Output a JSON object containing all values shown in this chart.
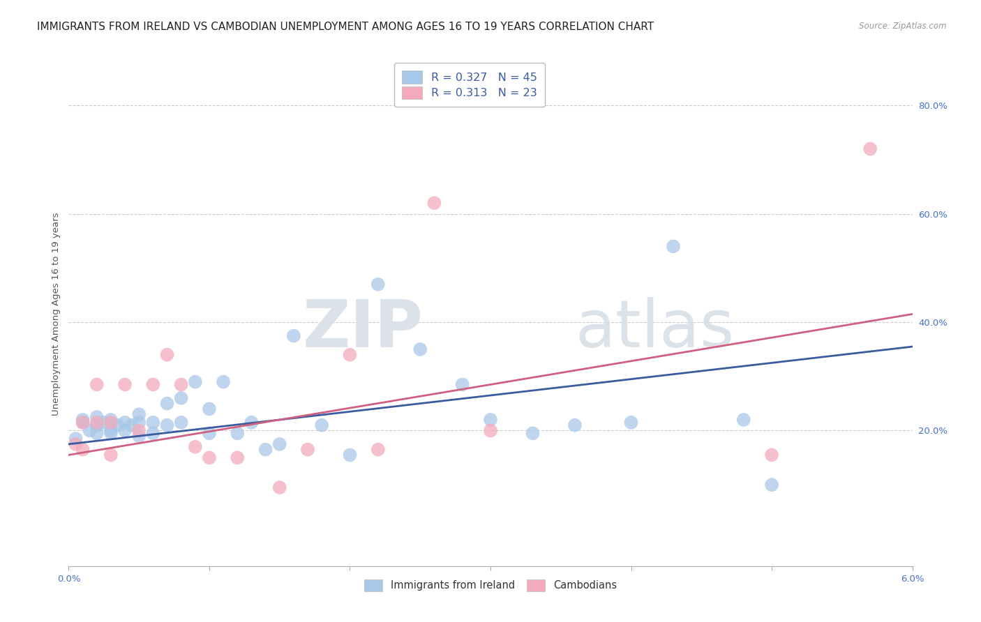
{
  "title": "IMMIGRANTS FROM IRELAND VS CAMBODIAN UNEMPLOYMENT AMONG AGES 16 TO 19 YEARS CORRELATION CHART",
  "source": "Source: ZipAtlas.com",
  "ylabel": "Unemployment Among Ages 16 to 19 years",
  "ylabel_right_ticks": [
    "80.0%",
    "60.0%",
    "40.0%",
    "20.0%"
  ],
  "ylabel_right_vals": [
    0.8,
    0.6,
    0.4,
    0.2
  ],
  "xmin": 0.0,
  "xmax": 0.06,
  "ymin": -0.05,
  "ymax": 0.88,
  "blue_color": "#A8C8E8",
  "pink_color": "#F4AABB",
  "blue_line_color": "#3A5BA0",
  "pink_line_color": "#D06080",
  "legend_r1": "0.327",
  "legend_n1": "45",
  "legend_r2": "0.313",
  "legend_n2": "23",
  "legend_label1": "Immigrants from Ireland",
  "legend_label2": "Cambodians",
  "blue_scatter_x": [
    0.0005,
    0.001,
    0.001,
    0.0015,
    0.002,
    0.002,
    0.002,
    0.0025,
    0.003,
    0.003,
    0.003,
    0.0035,
    0.004,
    0.004,
    0.0045,
    0.005,
    0.005,
    0.005,
    0.006,
    0.006,
    0.007,
    0.007,
    0.008,
    0.008,
    0.009,
    0.01,
    0.01,
    0.011,
    0.012,
    0.013,
    0.014,
    0.015,
    0.016,
    0.018,
    0.02,
    0.022,
    0.025,
    0.028,
    0.03,
    0.033,
    0.036,
    0.04,
    0.043,
    0.048,
    0.05
  ],
  "blue_scatter_y": [
    0.185,
    0.22,
    0.215,
    0.2,
    0.195,
    0.225,
    0.21,
    0.215,
    0.2,
    0.195,
    0.22,
    0.21,
    0.215,
    0.2,
    0.21,
    0.19,
    0.215,
    0.23,
    0.195,
    0.215,
    0.21,
    0.25,
    0.215,
    0.26,
    0.29,
    0.195,
    0.24,
    0.29,
    0.195,
    0.215,
    0.165,
    0.175,
    0.375,
    0.21,
    0.155,
    0.47,
    0.35,
    0.285,
    0.22,
    0.195,
    0.21,
    0.215,
    0.54,
    0.22,
    0.1
  ],
  "pink_scatter_x": [
    0.0005,
    0.001,
    0.001,
    0.002,
    0.002,
    0.003,
    0.003,
    0.004,
    0.005,
    0.006,
    0.007,
    0.008,
    0.009,
    0.01,
    0.012,
    0.015,
    0.017,
    0.02,
    0.022,
    0.026,
    0.03,
    0.05,
    0.057
  ],
  "pink_scatter_y": [
    0.175,
    0.215,
    0.165,
    0.285,
    0.215,
    0.215,
    0.155,
    0.285,
    0.2,
    0.285,
    0.34,
    0.285,
    0.17,
    0.15,
    0.15,
    0.095,
    0.165,
    0.34,
    0.165,
    0.62,
    0.2,
    0.155,
    0.72
  ],
  "watermark_zip": "ZIP",
  "watermark_atlas": "atlas",
  "title_fontsize": 11,
  "axis_label_fontsize": 9.5,
  "tick_fontsize": 9.5,
  "background_color": "#ffffff",
  "grid_color": "#cccccc"
}
